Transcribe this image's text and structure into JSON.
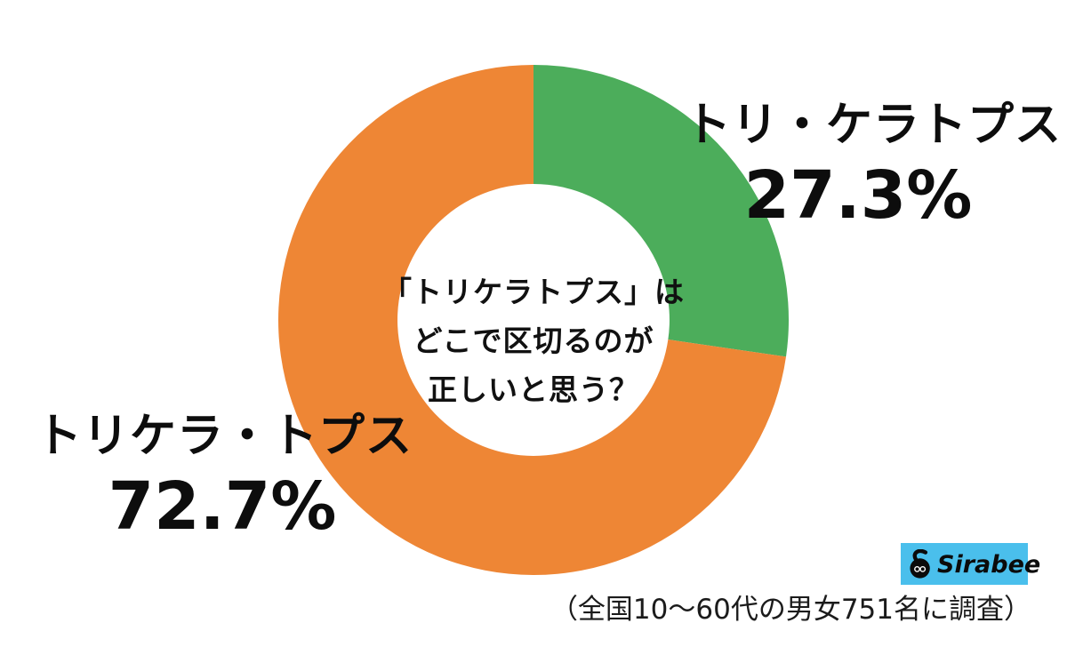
{
  "chart_data": {
    "type": "pie",
    "subtype": "donut",
    "title": "「トリケラトプス」はどこで区切るのが正しいと思う？",
    "center_text_lines": [
      "「トリケラトプス」は",
      "どこで区切るのが",
      "正しいと思う？"
    ],
    "start_angle": "top",
    "direction": "clockwise",
    "donut_hole_ratio": 0.533,
    "slices": [
      {
        "label": "トリ・ケラトプス",
        "value": 27.3,
        "display": "27.3%",
        "color": "#4cad5b"
      },
      {
        "label": "トリケラ・トプス",
        "value": 72.7,
        "display": "72.7%",
        "color": "#ee8635"
      }
    ]
  },
  "footer": {
    "logo_text": "Sirabee",
    "logo_bg_color": "#4abfec",
    "logo_icon_color": "#0b0b0b",
    "survey_note": "（全国10〜60代の男女751名に調査）"
  }
}
